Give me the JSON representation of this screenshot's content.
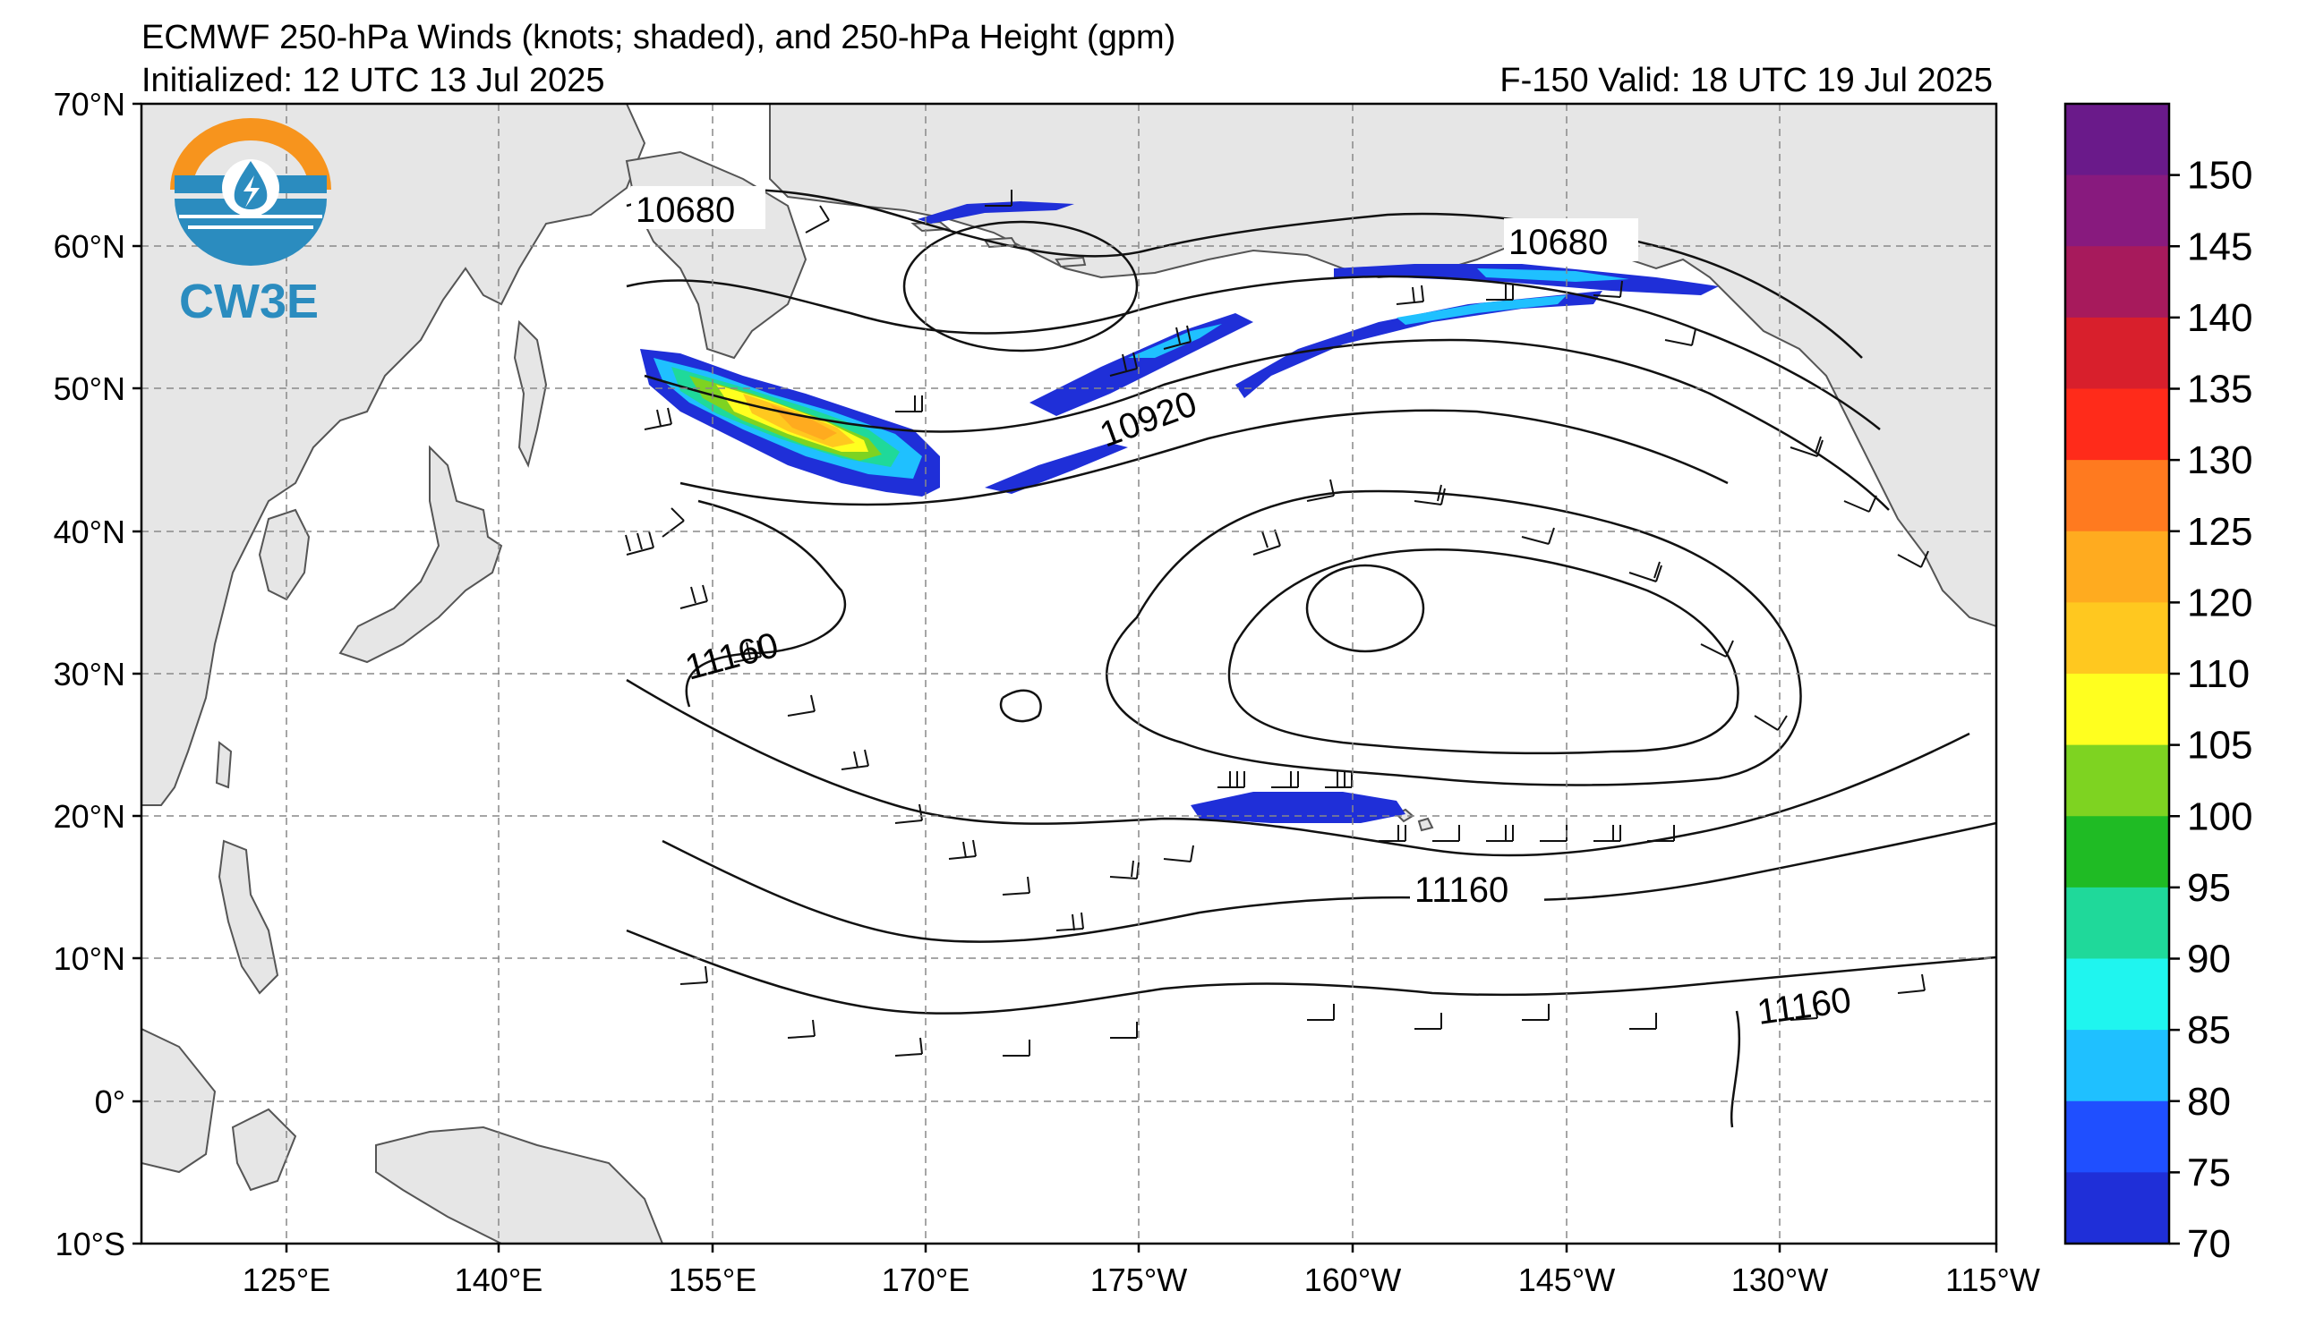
{
  "header": {
    "title": "ECMWF 250-hPa Winds (knots; shaded), and 250-hPa Height (gpm)",
    "initialized": "Initialized: 12 UTC 13 Jul 2025",
    "valid": "F-150  Valid: 18 UTC 19 Jul 2025"
  },
  "logo": {
    "text": "CW3E",
    "accent": "#f7941d",
    "primary": "#2b8cbf",
    "icon": "water-drop-lightning-icon"
  },
  "map": {
    "lat_labels": [
      "70°N",
      "60°N",
      "50°N",
      "40°N",
      "30°N",
      "20°N",
      "10°N",
      "0°",
      "10°S"
    ],
    "lon_labels": [
      "125°E",
      "140°E",
      "155°E",
      "170°E",
      "175°W",
      "160°W",
      "145°W",
      "130°W",
      "115°W"
    ],
    "contour_labels": [
      {
        "text": "10680"
      },
      {
        "text": "10680"
      },
      {
        "text": "10920"
      },
      {
        "text": "11160"
      },
      {
        "text": "11160"
      },
      {
        "text": "11160"
      }
    ],
    "land_color": "#e6e6e6",
    "ocean_color": "#ffffff"
  },
  "colorbar": {
    "ticks": [
      "150",
      "145",
      "140",
      "135",
      "130",
      "125",
      "120",
      "110",
      "105",
      "100",
      "95",
      "90",
      "85",
      "80",
      "75",
      "70"
    ],
    "colors": [
      "#6a1a8a",
      "#881a7e",
      "#a71a5c",
      "#d81f2c",
      "#ff2b1a",
      "#ff7a1f",
      "#ffab1f",
      "#ffc81f",
      "#ffff1f",
      "#7ed321",
      "#1fbb24",
      "#1fd99a",
      "#1ff5ef",
      "#1fc0ff",
      "#1f4fff",
      "#1f2fd8"
    ]
  }
}
